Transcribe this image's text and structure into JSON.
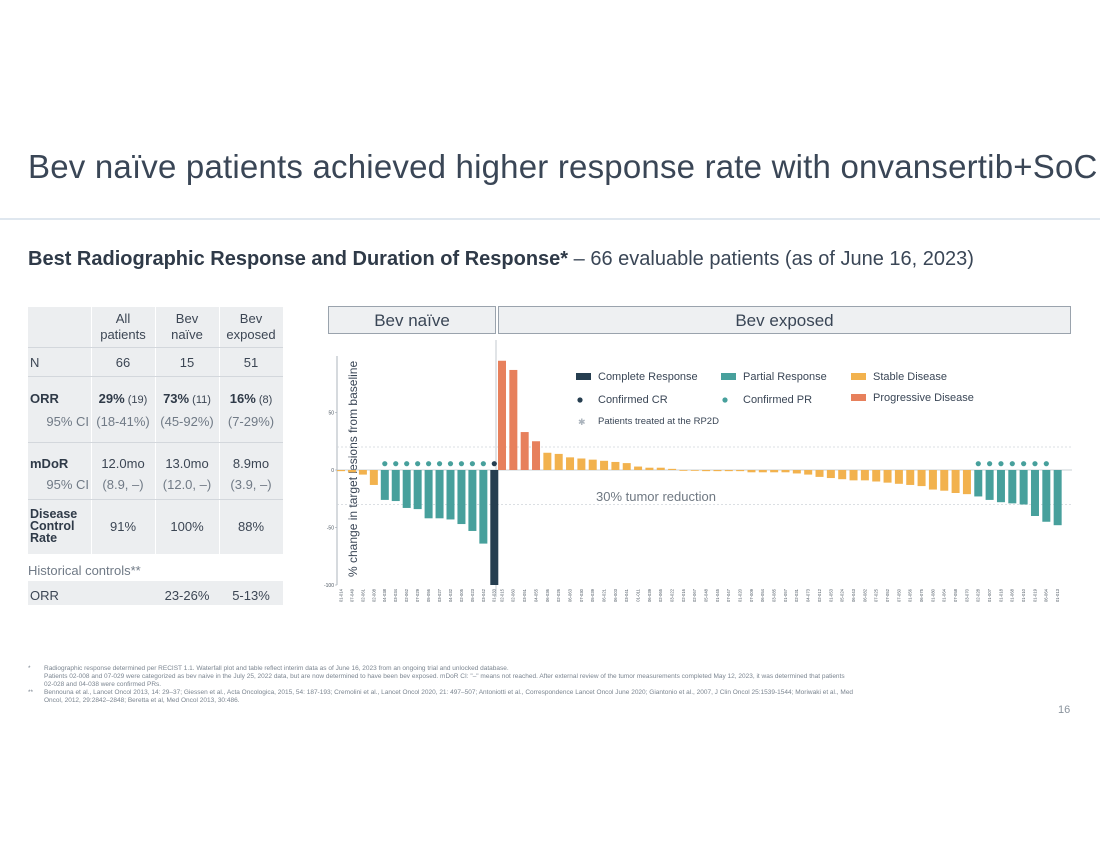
{
  "title": "Bev naïve patients achieved higher response rate with onvansertib+SoC",
  "subtitle": {
    "bold": "Best Radiographic Response and Duration of Response*",
    "rest": " – 66 evaluable patients (as of June 16, 2023)"
  },
  "table": {
    "headers": [
      "All patients",
      "Bev naïve",
      "Bev exposed"
    ],
    "n": {
      "label": "N",
      "values": [
        "66",
        "15",
        "51"
      ]
    },
    "orr": {
      "label": "ORR",
      "values": [
        {
          "main": "29%",
          "sub": " (19)"
        },
        {
          "main": "73%",
          "sub": " (11)"
        },
        {
          "main": "16%",
          "sub": " (8)"
        }
      ]
    },
    "orr_ci": {
      "label": "95% CI",
      "values": [
        "(18-41%)",
        "(45-92%)",
        "(7-29%)"
      ]
    },
    "mdor": {
      "label": "mDoR",
      "values": [
        "12.0mo",
        "13.0mo",
        "8.9mo"
      ]
    },
    "mdor_ci": {
      "label": "95% CI",
      "values": [
        "(8.9, –)",
        "(12.0, –)",
        "(3.9, –)"
      ]
    },
    "dcr": {
      "label": "Disease Control Rate",
      "values": [
        "91%",
        "100%",
        "88%"
      ]
    },
    "historical_label": "Historical controls**",
    "hist_orr": {
      "label": "ORR",
      "values": [
        "",
        "23-26%",
        "5-13%"
      ]
    }
  },
  "chart": {
    "groups": [
      "Bev naïve",
      "Bev exposed"
    ],
    "ylabel": "% change in target lesions from baseline",
    "annotation": "30% tumor reduction",
    "legend": [
      {
        "label": "Complete  Response",
        "kind": "bar",
        "color": "#263e50"
      },
      {
        "label": "Partial Response",
        "kind": "bar",
        "color": "#47a09c"
      },
      {
        "label": "Stable Disease",
        "kind": "bar",
        "color": "#f2b24e"
      },
      {
        "label": "Confirmed CR",
        "kind": "dot",
        "color": "#263e50"
      },
      {
        "label": "Confirmed PR",
        "kind": "dot",
        "color": "#47a09c"
      },
      {
        "label": "Progressive Disease",
        "kind": "bar",
        "color": "#e7805c"
      },
      {
        "label": "Patients treated at the RP2D",
        "kind": "star",
        "color": "#aab3bc"
      }
    ]
  },
  "chart_data": {
    "type": "bar",
    "ylim": [
      -100,
      100
    ],
    "yticks": [
      -100,
      -50,
      0,
      50
    ],
    "reference_line": -30,
    "colors": {
      "CR": "#263e50",
      "PR": "#47a09c",
      "SD": "#f2b24e",
      "PD": "#e7805c"
    },
    "naive": [
      {
        "id": "01-014",
        "value": -1,
        "resp": "SD",
        "conf": false
      },
      {
        "id": "07-049",
        "value": -2,
        "resp": "SD",
        "conf": false
      },
      {
        "id": "02-061",
        "value": -4,
        "resp": "SD",
        "conf": false
      },
      {
        "id": "02-008",
        "value": -13,
        "resp": "SD",
        "conf": false
      },
      {
        "id": "04-038",
        "value": -26,
        "resp": "PR",
        "conf": true
      },
      {
        "id": "03-034",
        "value": -27,
        "resp": "PR",
        "conf": true
      },
      {
        "id": "02-062",
        "value": -33,
        "resp": "PR",
        "conf": true
      },
      {
        "id": "07-029",
        "value": -34,
        "resp": "PR",
        "conf": true
      },
      {
        "id": "05-056",
        "value": -42,
        "resp": "PR",
        "conf": true
      },
      {
        "id": "03-027",
        "value": -42,
        "resp": "PR",
        "conf": true
      },
      {
        "id": "04-032",
        "value": -43,
        "resp": "PR",
        "conf": true
      },
      {
        "id": "02-005",
        "value": -47,
        "resp": "PR",
        "conf": true
      },
      {
        "id": "05-023",
        "value": -53,
        "resp": "PR",
        "conf": true
      },
      {
        "id": "03-042",
        "value": -64,
        "resp": "PR",
        "conf": true
      },
      {
        "id": "01-033",
        "value": -100,
        "resp": "CR",
        "conf": true
      }
    ],
    "exposed": [
      {
        "id": "02-015",
        "value": 95,
        "resp": "PD",
        "conf": false
      },
      {
        "id": "02-060",
        "value": 87,
        "resp": "PD",
        "conf": false
      },
      {
        "id": "03-051",
        "value": 33,
        "resp": "PD",
        "conf": false
      },
      {
        "id": "04-055",
        "value": 25,
        "resp": "PD",
        "conf": false
      },
      {
        "id": "06-036",
        "value": 15,
        "resp": "SD",
        "conf": false
      },
      {
        "id": "02-026",
        "value": 14,
        "resp": "SD",
        "conf": false
      },
      {
        "id": "06-063",
        "value": 11,
        "resp": "SD",
        "conf": false
      },
      {
        "id": "07-030",
        "value": 10,
        "resp": "SD",
        "conf": false
      },
      {
        "id": "05-039",
        "value": 9,
        "resp": "SD",
        "conf": false
      },
      {
        "id": "06-021",
        "value": 8,
        "resp": "SD",
        "conf": false
      },
      {
        "id": "06-003",
        "value": 7,
        "resp": "SD",
        "conf": false
      },
      {
        "id": "03-041",
        "value": 6,
        "resp": "SD",
        "conf": false
      },
      {
        "id": "01-011",
        "value": 3,
        "resp": "SD",
        "conf": false
      },
      {
        "id": "06-039",
        "value": 2,
        "resp": "SD",
        "conf": false
      },
      {
        "id": "02-065",
        "value": 2,
        "resp": "SD",
        "conf": false
      },
      {
        "id": "03-022",
        "value": 1,
        "resp": "SD",
        "conf": false
      },
      {
        "id": "02-016",
        "value": 0,
        "resp": "SD",
        "conf": false
      },
      {
        "id": "02-067",
        "value": 0,
        "resp": "SD",
        "conf": false
      },
      {
        "id": "05-048",
        "value": -1,
        "resp": "SD",
        "conf": false
      },
      {
        "id": "01-045",
        "value": -1,
        "resp": "SD",
        "conf": false
      },
      {
        "id": "07-047",
        "value": -1,
        "resp": "SD",
        "conf": false
      },
      {
        "id": "01-020",
        "value": -1,
        "resp": "SD",
        "conf": false
      },
      {
        "id": "07-009",
        "value": -2,
        "resp": "SD",
        "conf": false
      },
      {
        "id": "06-054",
        "value": -2,
        "resp": "SD",
        "conf": false
      },
      {
        "id": "03-085",
        "value": -2,
        "resp": "SD",
        "conf": false
      },
      {
        "id": "01-057",
        "value": -2,
        "resp": "SD",
        "conf": false
      },
      {
        "id": "02-031",
        "value": -3,
        "resp": "SD",
        "conf": false
      },
      {
        "id": "04-073",
        "value": -4,
        "resp": "SD",
        "conf": false
      },
      {
        "id": "02-012",
        "value": -6,
        "resp": "SD",
        "conf": false
      },
      {
        "id": "01-053",
        "value": -7,
        "resp": "SD",
        "conf": false
      },
      {
        "id": "05-024",
        "value": -8,
        "resp": "SD",
        "conf": false
      },
      {
        "id": "06-043",
        "value": -9,
        "resp": "SD",
        "conf": false
      },
      {
        "id": "06-082",
        "value": -9,
        "resp": "SD",
        "conf": false
      },
      {
        "id": "07-025",
        "value": -10,
        "resp": "SD",
        "conf": false
      },
      {
        "id": "07-052",
        "value": -11,
        "resp": "SD",
        "conf": false
      },
      {
        "id": "07-050",
        "value": -12,
        "resp": "SD",
        "conf": false
      },
      {
        "id": "01-056",
        "value": -13,
        "resp": "SD",
        "conf": false
      },
      {
        "id": "06-075",
        "value": -14,
        "resp": "SD",
        "conf": false
      },
      {
        "id": "01-080",
        "value": -17,
        "resp": "SD",
        "conf": false
      },
      {
        "id": "01-064",
        "value": -18,
        "resp": "SD",
        "conf": false
      },
      {
        "id": "07-058",
        "value": -20,
        "resp": "SD",
        "conf": false
      },
      {
        "id": "03-070",
        "value": -21,
        "resp": "SD",
        "conf": false
      },
      {
        "id": "02-028",
        "value": -23,
        "resp": "PR",
        "conf": true
      },
      {
        "id": "01-007",
        "value": -26,
        "resp": "PR",
        "conf": true
      },
      {
        "id": "01-018",
        "value": -28,
        "resp": "PR",
        "conf": true
      },
      {
        "id": "01-068",
        "value": -29,
        "resp": "PR",
        "conf": true
      },
      {
        "id": "01-010",
        "value": -30,
        "resp": "PR",
        "conf": true
      },
      {
        "id": "01-019",
        "value": -40,
        "resp": "PR",
        "conf": true
      },
      {
        "id": "06-064",
        "value": -45,
        "resp": "PR",
        "conf": true
      },
      {
        "id": "01-013",
        "value": -48,
        "resp": "PR",
        "conf": false
      }
    ]
  },
  "footnotes": [
    {
      "marker": "*",
      "text": "Radiographic response determined per RECIST 1.1. Waterfall plot and table reflect interim data as of June 16, 2023 from an ongoing trial and unlocked database."
    },
    {
      "marker": "",
      "text": "Patients 02-008 and 07-029 were categorized as bev naive in the July 25, 2022 data, but are now determined to have been bev exposed. mDoR CI: \"–\" means not reached. After external review of the tumor measurements completed May 12, 2023, it was determined that patients"
    },
    {
      "marker": "",
      "text": "02-028 and 04-038 were confirmed PRs."
    },
    {
      "marker": "**",
      "text": "Bennouna et al., Lancet Oncol 2013, 14: 29–37; Giessen et al., Acta Oncologica, 2015, 54: 187-193; Cremolini et al., Lancet Oncol 2020, 21: 497–507; Antoniotti et al., Correspondence Lancet Oncol June 2020; Giantonio et al., 2007, J Clin Oncol 25:1539-1544; Moriwaki et al., Med"
    },
    {
      "marker": "",
      "text": "Oncol, 2012, 29:2842–2848; Beretta et al, Med Oncol 2013, 30:486."
    }
  ],
  "page_number": "16"
}
